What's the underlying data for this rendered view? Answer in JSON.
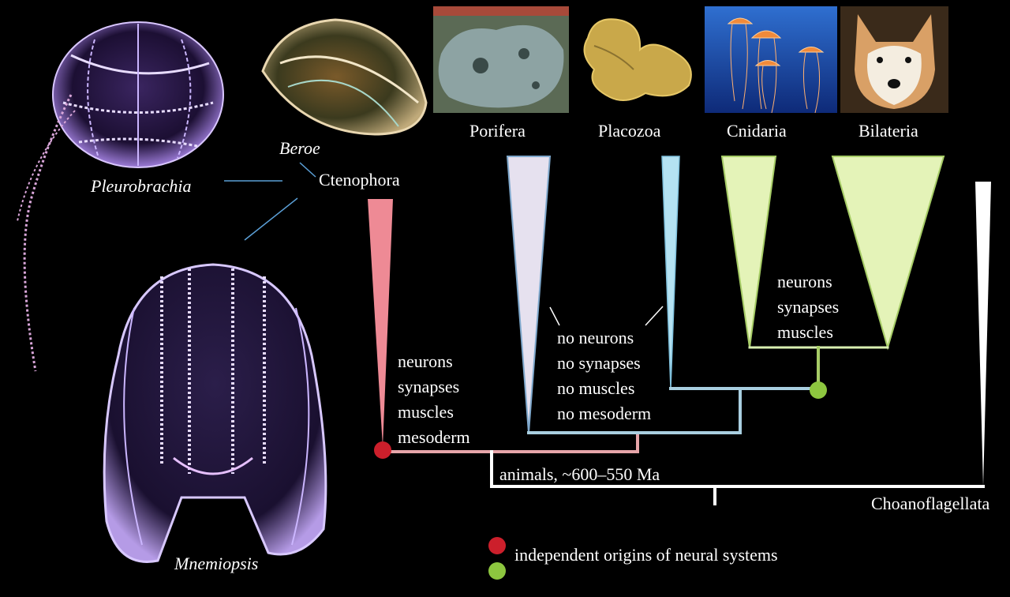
{
  "colors": {
    "ctenophora": "#ee8a95",
    "porifera": "#e6e1ef",
    "porifera_edge": "#7fa8cc",
    "placozoa": "#b4e2f2",
    "cnidaria": "#e4f3b8",
    "bilateria": "#e4f3b8",
    "cnid_edge": "#a6cc66",
    "choano": "#ffffff",
    "origin_red": "#cc1f2b",
    "origin_green": "#8dc63f"
  },
  "organisms": {
    "pleurobrachia": "Pleurobrachia",
    "beroe": "Beroe",
    "mnemiopsis": "Mnemiopsis"
  },
  "groups": {
    "ctenophora": "Ctenophora",
    "porifera": "Porifera",
    "placozoa": "Placozoa",
    "cnidaria": "Cnidaria",
    "bilateria": "Bilateria",
    "choanoflagellata": "Choanoflagellata"
  },
  "traits": {
    "ctenophora": [
      "neurons",
      "synapses",
      "muscles",
      "mesoderm"
    ],
    "sponge_placozoa": [
      "no neurons",
      "no synapses",
      "no muscles",
      "no mesoderm"
    ],
    "cnidaria_bilateria": [
      "neurons",
      "synapses",
      "muscles"
    ]
  },
  "root_label": "animals, ~600–550 Ma",
  "legend": {
    "text": "independent origins of neural systems"
  }
}
